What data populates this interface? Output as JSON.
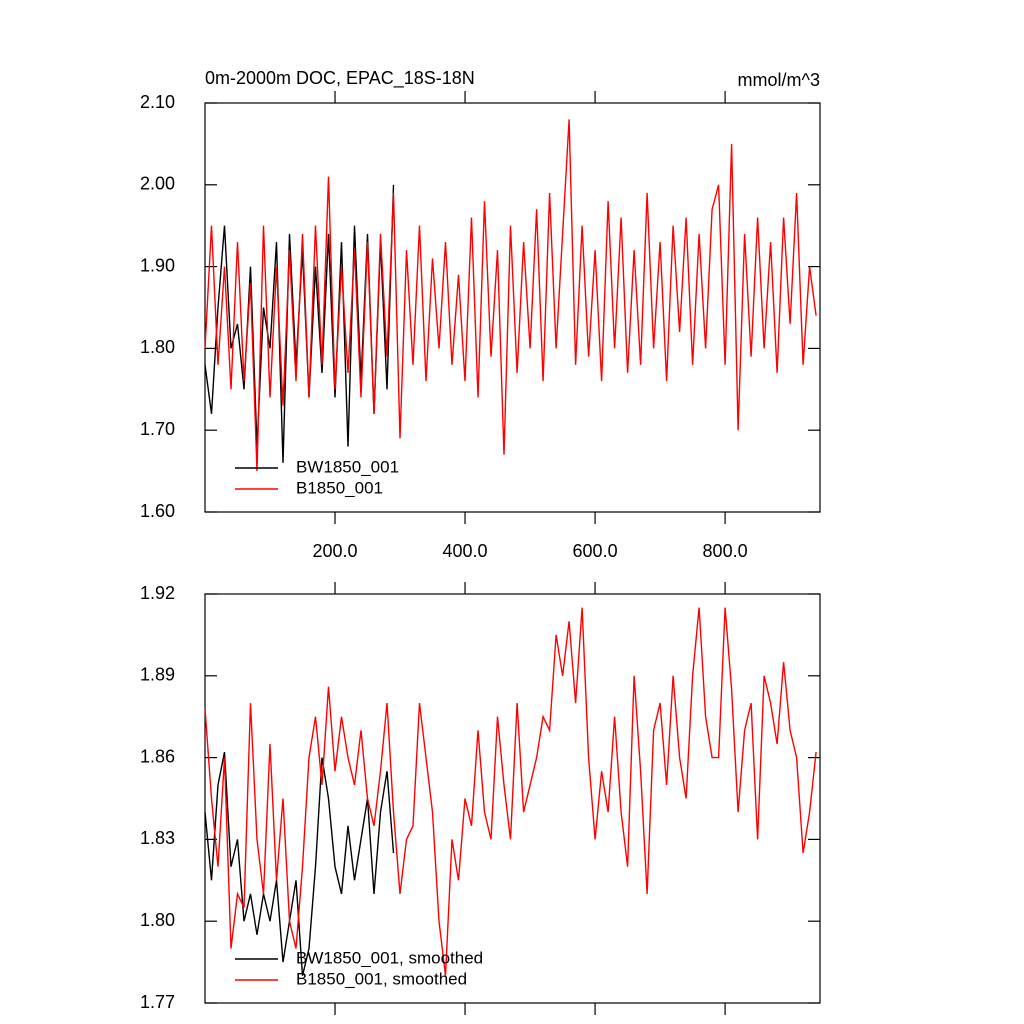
{
  "chart_data": [
    {
      "type": "line",
      "title": "0m-2000m DOC, EPAC_18S-18N",
      "subtitle": "mmol/m^3",
      "x": [
        0,
        10,
        20,
        30,
        40,
        50,
        60,
        70,
        80,
        90,
        100,
        110,
        120,
        130,
        140,
        150,
        160,
        170,
        180,
        190,
        200,
        210,
        220,
        230,
        240,
        250,
        260,
        270,
        280,
        290,
        300,
        310,
        320,
        330,
        340,
        350,
        360,
        370,
        380,
        390,
        400,
        410,
        420,
        430,
        440,
        450,
        460,
        470,
        480,
        490,
        500,
        510,
        520,
        530,
        540,
        550,
        560,
        570,
        580,
        590,
        600,
        610,
        620,
        630,
        640,
        650,
        660,
        670,
        680,
        690,
        700,
        710,
        720,
        730,
        740,
        750,
        760,
        770,
        780,
        790,
        800,
        810,
        820,
        830,
        840,
        850,
        860,
        870,
        880,
        890,
        900,
        910,
        920,
        930,
        940
      ],
      "series": [
        {
          "name": "BW1850_001",
          "color": "#000000",
          "values": [
            1.78,
            1.72,
            1.85,
            1.95,
            1.8,
            1.83,
            1.75,
            1.9,
            1.68,
            1.85,
            1.8,
            1.93,
            1.66,
            1.94,
            1.78,
            1.92,
            1.74,
            1.9,
            1.77,
            1.94,
            1.74,
            1.93,
            1.68,
            1.95,
            1.76,
            1.94,
            1.72,
            1.93,
            1.75,
            2.0,
            null,
            null,
            null,
            null,
            null,
            null,
            null,
            null,
            null,
            null,
            null,
            null,
            null,
            null,
            null,
            null,
            null,
            null,
            null,
            null,
            null,
            null,
            null,
            null,
            null,
            null,
            null,
            null,
            null,
            null,
            null,
            null,
            null,
            null,
            null,
            null,
            null,
            null,
            null,
            null,
            null,
            null,
            null,
            null,
            null,
            null,
            null,
            null,
            null,
            null,
            null,
            null,
            null,
            null,
            null,
            null,
            null,
            null,
            null,
            null,
            null,
            null,
            null,
            null,
            null
          ]
        },
        {
          "name": "B1850_001",
          "color": "#ff0000",
          "values": [
            1.8,
            1.95,
            1.78,
            1.9,
            1.75,
            1.93,
            1.76,
            1.88,
            1.65,
            1.95,
            1.74,
            1.9,
            1.73,
            1.92,
            1.76,
            1.94,
            1.74,
            1.95,
            1.78,
            2.01,
            1.75,
            1.9,
            1.77,
            1.92,
            1.74,
            1.93,
            1.72,
            1.94,
            1.79,
            1.99,
            1.69,
            1.92,
            1.78,
            1.95,
            1.76,
            1.91,
            1.8,
            1.93,
            1.78,
            1.89,
            1.76,
            1.96,
            1.74,
            1.98,
            1.79,
            1.92,
            1.67,
            1.95,
            1.77,
            1.93,
            1.8,
            1.97,
            1.76,
            1.99,
            1.8,
            1.94,
            2.08,
            1.78,
            1.95,
            1.79,
            1.92,
            1.76,
            1.98,
            1.8,
            1.96,
            1.77,
            1.92,
            1.78,
            1.99,
            1.8,
            1.93,
            1.76,
            1.95,
            1.82,
            1.96,
            1.78,
            1.94,
            1.8,
            1.97,
            2.0,
            1.78,
            2.05,
            1.7,
            1.94,
            1.79,
            1.96,
            1.8,
            1.93,
            1.77,
            1.96,
            1.83,
            1.99,
            1.78,
            1.9,
            1.84
          ]
        }
      ],
      "xlim": [
        0,
        946
      ],
      "xticks": [
        {
          "value": 200,
          "label": "200.0"
        },
        {
          "value": 400,
          "label": "400.0"
        },
        {
          "value": 600,
          "label": "600.0"
        },
        {
          "value": 800,
          "label": "800.0"
        }
      ],
      "ylim": [
        1.6,
        2.1
      ],
      "yticks": [
        {
          "value": 1.6,
          "label": "1.60"
        },
        {
          "value": 1.7,
          "label": "1.70"
        },
        {
          "value": 1.8,
          "label": "1.80"
        },
        {
          "value": 1.9,
          "label": "1.90"
        },
        {
          "value": 2.0,
          "label": "2.00"
        },
        {
          "value": 2.1,
          "label": "2.10"
        }
      ],
      "legend": "lower left"
    },
    {
      "type": "line",
      "x": [
        0,
        10,
        20,
        30,
        40,
        50,
        60,
        70,
        80,
        90,
        100,
        110,
        120,
        130,
        140,
        150,
        160,
        170,
        180,
        190,
        200,
        210,
        220,
        230,
        240,
        250,
        260,
        270,
        280,
        290,
        300,
        310,
        320,
        330,
        340,
        350,
        360,
        370,
        380,
        390,
        400,
        410,
        420,
        430,
        440,
        450,
        460,
        470,
        480,
        490,
        500,
        510,
        520,
        530,
        540,
        550,
        560,
        570,
        580,
        590,
        600,
        610,
        620,
        630,
        640,
        650,
        660,
        670,
        680,
        690,
        700,
        710,
        720,
        730,
        740,
        750,
        760,
        770,
        780,
        790,
        800,
        810,
        820,
        830,
        840,
        850,
        860,
        870,
        880,
        890,
        900,
        910,
        920,
        930,
        940
      ],
      "series": [
        {
          "name": "BW1850_001, smoothed",
          "color": "#000000",
          "values": [
            1.84,
            1.815,
            1.85,
            1.862,
            1.82,
            1.83,
            1.8,
            1.81,
            1.795,
            1.81,
            1.8,
            1.815,
            1.785,
            1.8,
            1.815,
            1.78,
            1.79,
            1.82,
            1.86,
            1.845,
            1.82,
            1.81,
            1.835,
            1.815,
            1.83,
            1.845,
            1.81,
            1.84,
            1.855,
            1.825,
            null,
            null,
            null,
            null,
            null,
            null,
            null,
            null,
            null,
            null,
            null,
            null,
            null,
            null,
            null,
            null,
            null,
            null,
            null,
            null,
            null,
            null,
            null,
            null,
            null,
            null,
            null,
            null,
            null,
            null,
            null,
            null,
            null,
            null,
            null,
            null,
            null,
            null,
            null,
            null,
            null,
            null,
            null,
            null,
            null,
            null,
            null,
            null,
            null,
            null,
            null,
            null,
            null,
            null,
            null,
            null,
            null,
            null,
            null,
            null,
            null,
            null,
            null,
            null,
            null
          ]
        },
        {
          "name": "B1850_001, smoothed",
          "color": "#ff0000",
          "values": [
            1.878,
            1.845,
            1.82,
            1.86,
            1.79,
            1.81,
            1.805,
            1.88,
            1.83,
            1.81,
            1.865,
            1.815,
            1.845,
            1.8,
            1.79,
            1.82,
            1.86,
            1.875,
            1.85,
            1.886,
            1.855,
            1.875,
            1.86,
            1.85,
            1.87,
            1.845,
            1.835,
            1.855,
            1.88,
            1.84,
            1.81,
            1.83,
            1.835,
            1.88,
            1.86,
            1.84,
            1.8,
            1.78,
            1.83,
            1.815,
            1.845,
            1.835,
            1.87,
            1.84,
            1.83,
            1.875,
            1.85,
            1.83,
            1.88,
            1.84,
            1.85,
            1.86,
            1.875,
            1.87,
            1.905,
            1.89,
            1.91,
            1.88,
            1.915,
            1.86,
            1.83,
            1.855,
            1.84,
            1.875,
            1.84,
            1.82,
            1.89,
            1.855,
            1.81,
            1.87,
            1.88,
            1.85,
            1.89,
            1.86,
            1.845,
            1.89,
            1.915,
            1.875,
            1.86,
            1.86,
            1.915,
            1.885,
            1.84,
            1.87,
            1.88,
            1.83,
            1.89,
            1.88,
            1.865,
            1.895,
            1.87,
            1.86,
            1.825,
            1.84,
            1.862
          ]
        }
      ],
      "xlim": [
        0,
        946
      ],
      "xticks": [
        200,
        400,
        600,
        800
      ],
      "ylim": [
        1.77,
        1.92
      ],
      "yticks": [
        1.77,
        {
          "value": 1.8,
          "label": "1.80"
        },
        1.83,
        1.86,
        1.89,
        1.92
      ],
      "legend": "lower left"
    }
  ]
}
